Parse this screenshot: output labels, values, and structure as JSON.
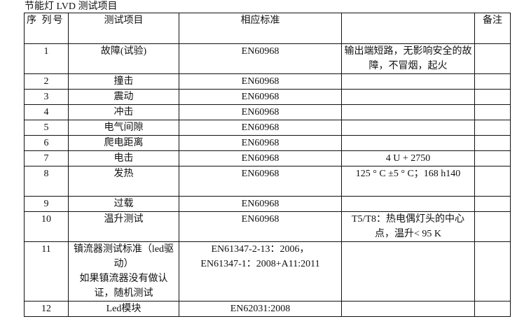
{
  "title": "节能灯 LVD 测试项目",
  "header": {
    "no": "序 列号",
    "item": "测试项目",
    "standard": "相应标准",
    "remark_blank": "",
    "remark": "备注"
  },
  "rows": [
    {
      "no": "1",
      "item": "故障(试验)",
      "standard": "EN60968",
      "note": "输出端短路，无影响安全的故障，不冒烟，起火",
      "remark": ""
    },
    {
      "no": "2",
      "item": "撞击",
      "standard": "EN60968",
      "note": "",
      "remark": ""
    },
    {
      "no": "3",
      "item": "震动",
      "standard": "EN60968",
      "note": "",
      "remark": ""
    },
    {
      "no": "4",
      "item": "冲击",
      "standard": "EN60968",
      "note": "",
      "remark": ""
    },
    {
      "no": "5",
      "item": "电气间隙",
      "standard": "EN60968",
      "note": "",
      "remark": ""
    },
    {
      "no": "6",
      "item": "爬电距离",
      "standard": "EN60968",
      "note": "",
      "remark": ""
    },
    {
      "no": "7",
      "item": "电击",
      "standard": "EN60968",
      "note": "4 U + 2750",
      "remark": ""
    },
    {
      "no": "8",
      "item": "发热",
      "standard": "EN60968",
      "note": "125 ° C ±5 ° C；168 h140",
      "remark": ""
    },
    {
      "no": "9",
      "item": "过载",
      "standard": "EN60968",
      "note": "",
      "remark": ""
    },
    {
      "no": "10",
      "item": "温升测试",
      "standard": "EN60968",
      "note": "T5/T8：热电偶灯头的中心点，温升< 95 K",
      "remark": ""
    },
    {
      "no": "11",
      "item": "镇流器测试标准（led驱动）",
      "item2": "如果镇流器没有做认证，随机测试",
      "standard": "EN61347-2-13：2006，",
      "standard2": "EN61347-1：2008+A11:2011",
      "note": "",
      "remark": ""
    },
    {
      "no": "12",
      "item": "Led模块",
      "standard": "EN62031:2008",
      "note": "",
      "remark": ""
    }
  ]
}
